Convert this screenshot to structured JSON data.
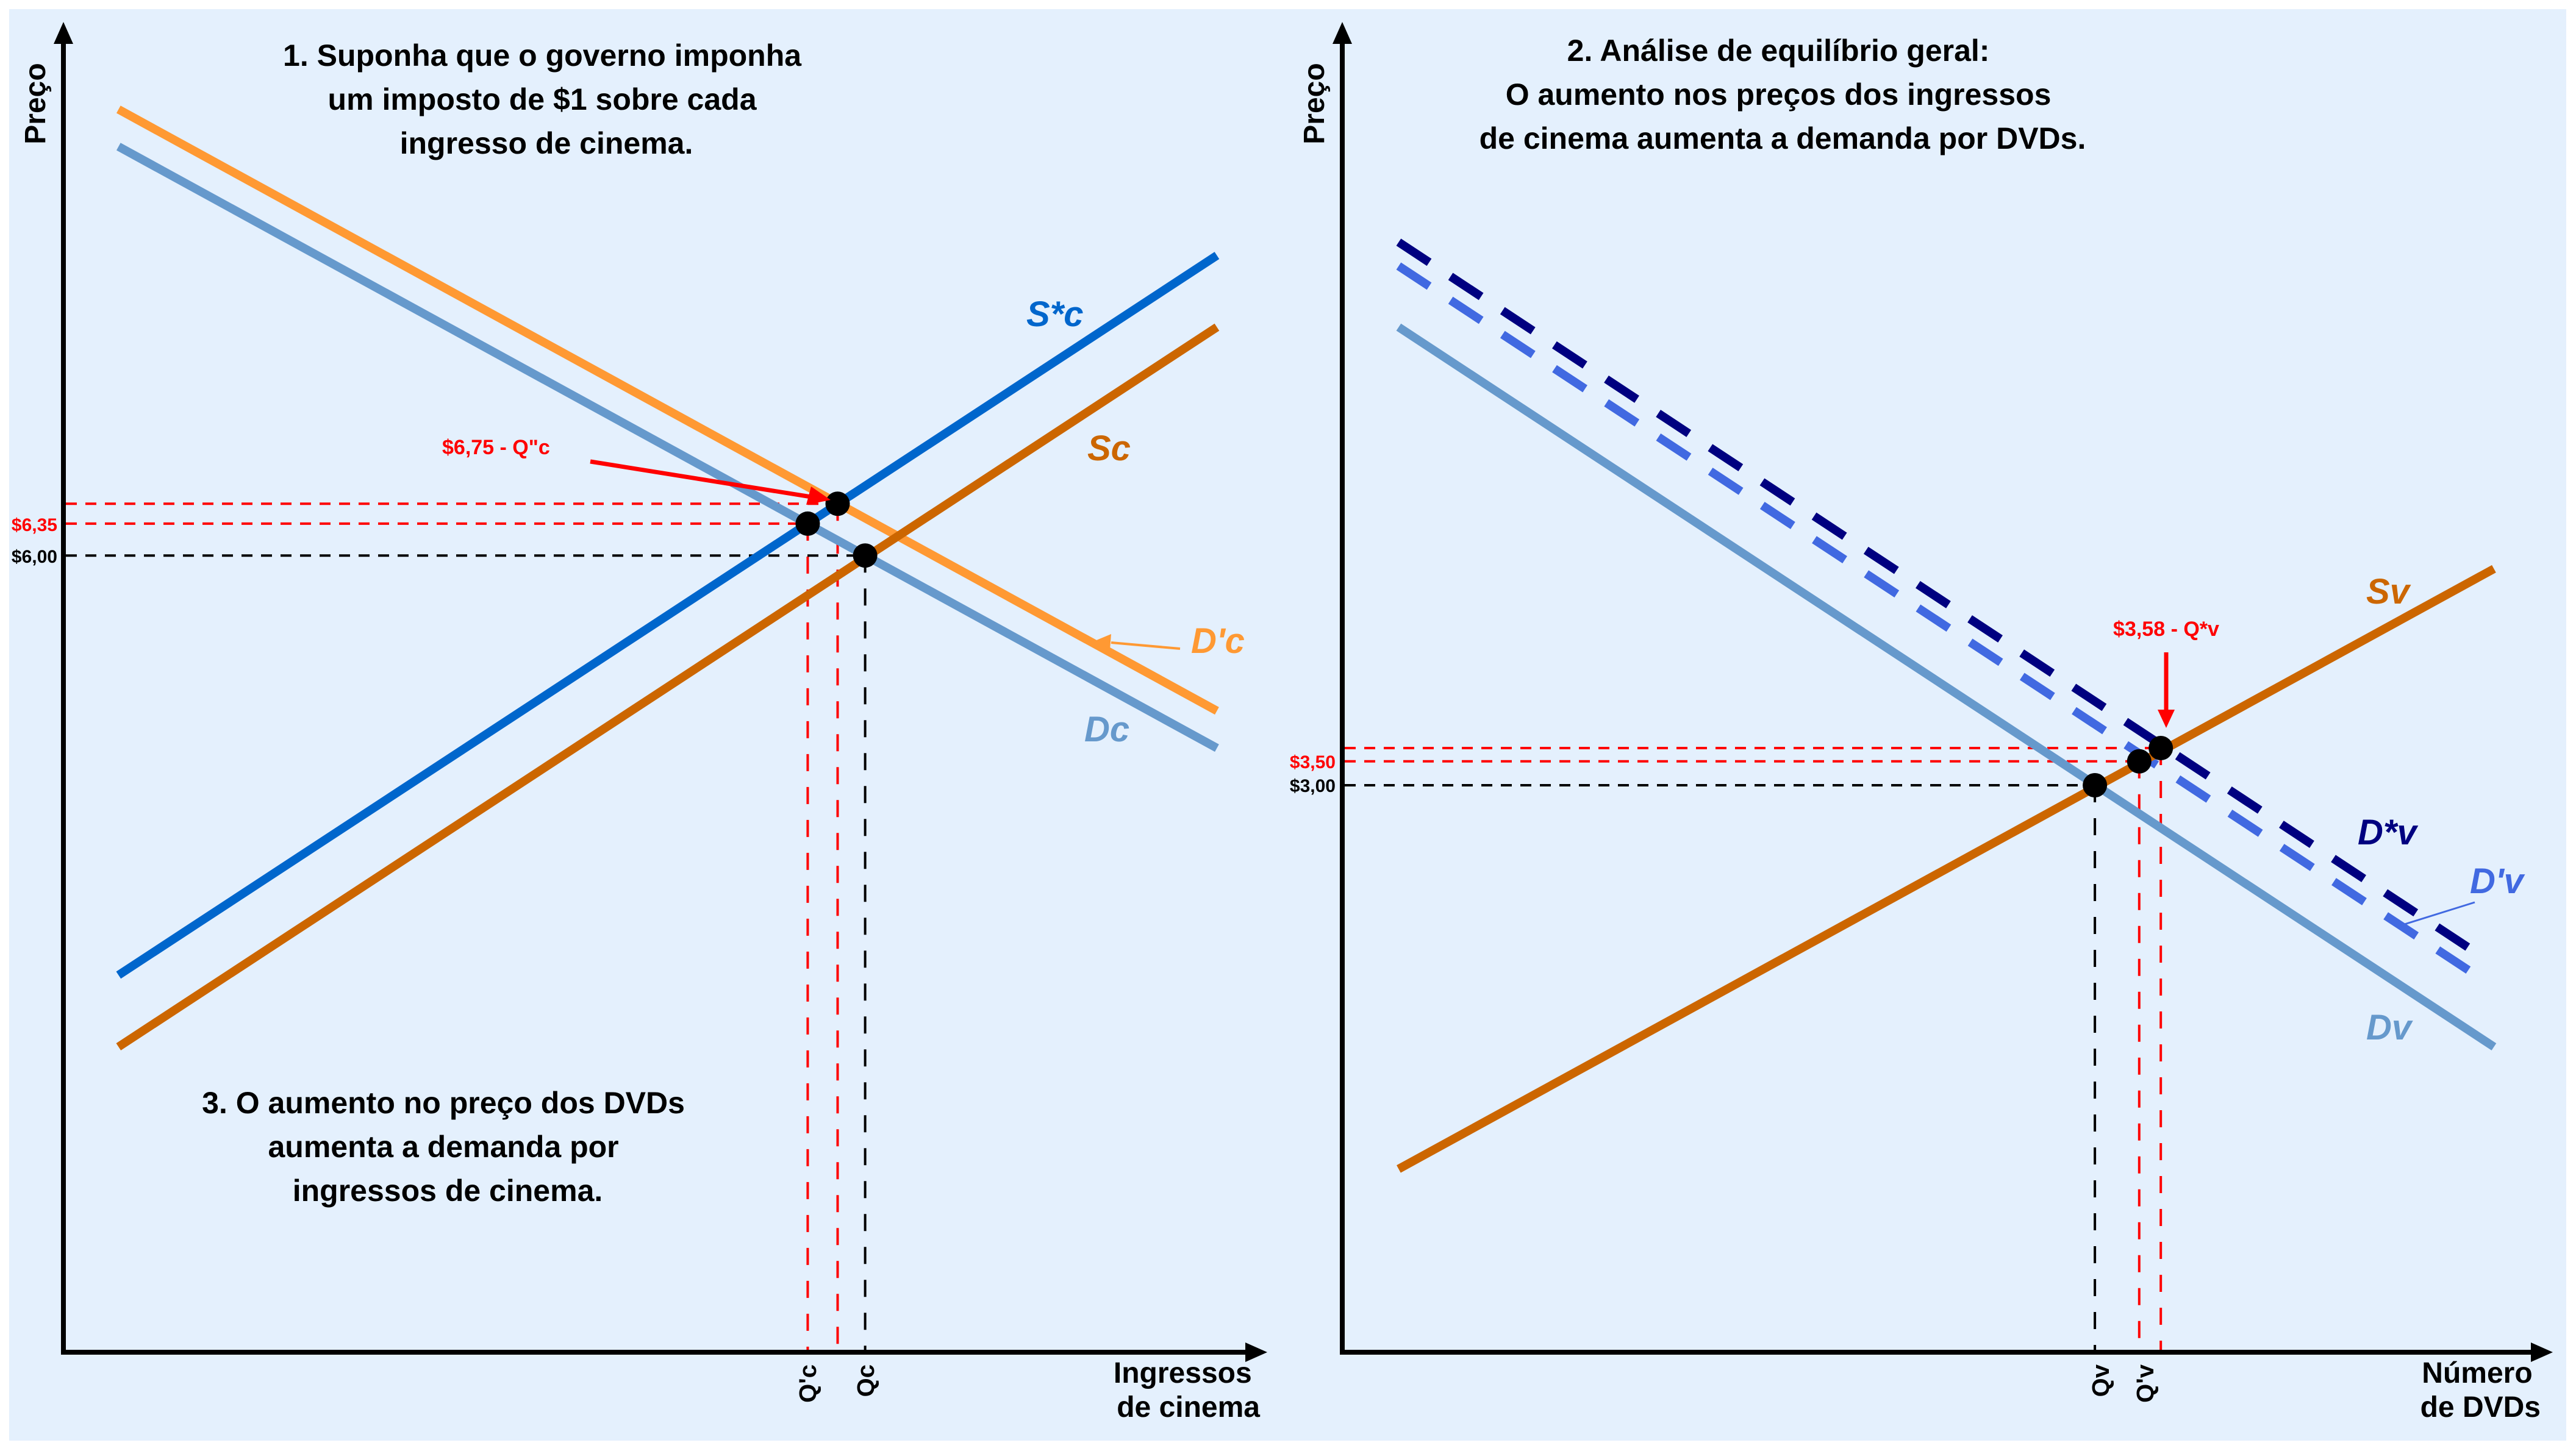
{
  "colors": {
    "background": "#e4f0fd",
    "axis": "#000000",
    "red": "#ff0000",
    "supply_original": "#cc6600",
    "supply_shifted": "#0066cc",
    "demand_original": "#6699cc",
    "demand_shifted_left": "#ff9933",
    "demand_dvd_prime": "#4169e1",
    "demand_dvd_star": "#000080",
    "point": "#000000"
  },
  "chart_data": [
    {
      "type": "line",
      "title": "1. Suponha que o governo imponha um imposto de $1 sobre cada ingresso de cinema.",
      "title_lines": [
        "1. Suponha que o governo imponha",
        "um imposto de $1 sobre cada",
        "ingresso de cinema."
      ],
      "note_lines": [
        "3. O aumento no preço dos DVDs",
        "aumenta a demanda por",
        "ingressos de cinema."
      ],
      "xlabel_lines": [
        "Ingressos",
        "de cinema"
      ],
      "ylabel": "Preço",
      "xlim": [
        0,
        100
      ],
      "ylim": [
        0,
        100
      ],
      "grid": false,
      "series": [
        {
          "name": "D'c",
          "color": "#ff9933",
          "style": "solid",
          "x": [
            4.4,
            96.2
          ],
          "y": [
            93.6,
            48.3
          ]
        },
        {
          "name": "Dc",
          "color": "#6699cc",
          "style": "solid",
          "x": [
            4.4,
            96.2
          ],
          "y": [
            90.8,
            45.5
          ]
        },
        {
          "name": "S*c",
          "color": "#0066cc",
          "style": "solid",
          "x": [
            4.4,
            96.2
          ],
          "y": [
            28.4,
            82.6
          ]
        },
        {
          "name": "Sc",
          "color": "#cc6600",
          "style": "solid",
          "x": [
            4.4,
            96.2
          ],
          "y": [
            23.0,
            77.2
          ]
        }
      ],
      "curve_labels": [
        {
          "text": "S*c",
          "color": "#0066cc"
        },
        {
          "text": "Sc",
          "color": "#cc6600"
        },
        {
          "text": "D'c",
          "color": "#ff9933"
        },
        {
          "text": "Dc",
          "color": "#6699cc"
        }
      ],
      "equilibria": [
        {
          "name": "Q'c",
          "x": 62.0,
          "y": 62.4,
          "price_label": "$6,35",
          "color": "#ff0000"
        },
        {
          "name": "Q\"c",
          "x": 64.5,
          "y": 63.9,
          "price_label": "",
          "color": "#ff0000"
        },
        {
          "name": "Qc",
          "x": 66.8,
          "y": 60.0,
          "price_label": "$6,00",
          "color": "#000000"
        }
      ],
      "x_ticks": [
        "Q'c",
        "Qc"
      ],
      "annotation": "$6,75 - Q\"c"
    },
    {
      "type": "line",
      "title": "2. Análise de equilíbrio geral: O aumento nos preços dos ingressos de cinema aumenta a demanda por DVDs.",
      "title_lines": [
        "2. Análise de equilíbrio geral:",
        "O aumento nos preços dos ingressos",
        "de cinema aumenta a demanda por DVDs."
      ],
      "xlabel_lines": [
        "Número",
        "de DVDs"
      ],
      "ylabel": "Preço",
      "xlim": [
        0,
        100
      ],
      "ylim": [
        0,
        100
      ],
      "grid": false,
      "series": [
        {
          "name": "D*v",
          "color": "#000080",
          "style": "dashed",
          "x": [
            4.5,
            94.4
          ],
          "y": [
            83.6,
            30.1
          ]
        },
        {
          "name": "D'v",
          "color": "#4169e1",
          "style": "dashed",
          "x": [
            4.5,
            94.4
          ],
          "y": [
            81.8,
            28.4
          ]
        },
        {
          "name": "Dv",
          "color": "#6699cc",
          "style": "solid",
          "x": [
            4.5,
            95.9
          ],
          "y": [
            77.2,
            23.0
          ]
        },
        {
          "name": "Sv",
          "color": "#cc6600",
          "style": "solid",
          "x": [
            4.5,
            95.9
          ],
          "y": [
            13.8,
            59.0
          ]
        }
      ],
      "curve_labels": [
        {
          "text": "Sv",
          "color": "#cc6600"
        },
        {
          "text": "D*v",
          "color": "#000080"
        },
        {
          "text": "D'v",
          "color": "#4169e1"
        },
        {
          "text": "Dv",
          "color": "#6699cc"
        }
      ],
      "equilibria": [
        {
          "name": "Qv",
          "x": 62.6,
          "y": 42.7,
          "price_label": "$3,00",
          "color": "#000000"
        },
        {
          "name": "Q'v",
          "x": 66.3,
          "y": 44.5,
          "price_label": "$3,50",
          "color": "#ff0000"
        },
        {
          "name": "Q*v",
          "x": 68.1,
          "y": 45.5,
          "price_label": "",
          "color": "#ff0000"
        }
      ],
      "x_ticks": [
        "Qv",
        "Q'v"
      ],
      "annotation": "$3,58 - Q*v"
    }
  ]
}
